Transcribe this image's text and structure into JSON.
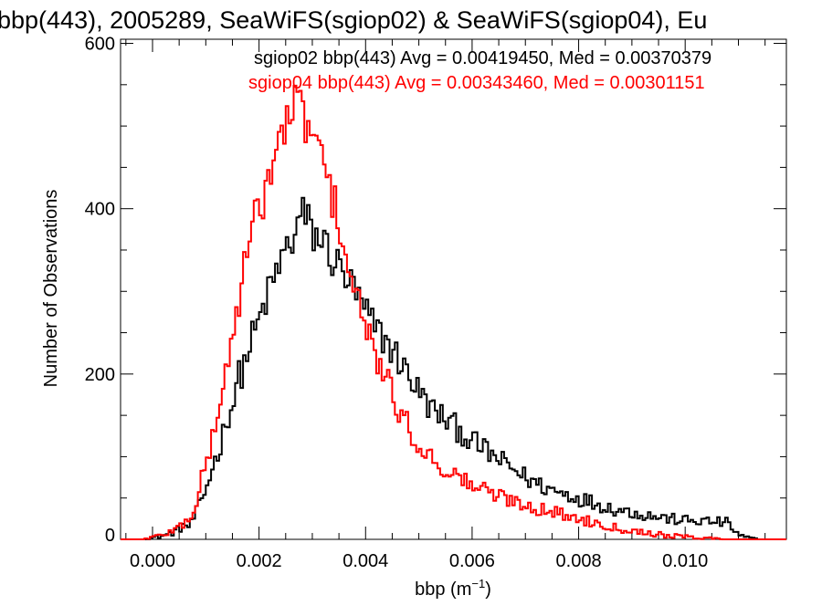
{
  "chart_data": {
    "type": "histogram",
    "title": "bbp(443), 2005289, SeaWiFS(sgiop02) & SeaWiFS(sgiop04), Eu",
    "xlabel": "bbp (m",
    "xlabel_sup": "−1",
    "xlabel_close": ")",
    "ylabel": "Number of Observations",
    "xlim": [
      -0.0006,
      0.0119
    ],
    "ylim": [
      0,
      605
    ],
    "x_ticks": [
      0.0,
      0.002,
      0.004,
      0.006,
      0.008,
      0.01
    ],
    "x_tick_labels": [
      "0.000",
      "0.002",
      "0.004",
      "0.006",
      "0.008",
      "0.010"
    ],
    "y_ticks": [
      0,
      200,
      400,
      600
    ],
    "y_tick_labels": [
      "0",
      "200",
      "400",
      "600"
    ],
    "grid": false,
    "series": [
      {
        "name": "sgiop02",
        "label": "sgiop02 bbp(443) Avg = 0.00419450, Med = 0.00370379",
        "color": "#000000",
        "curve": [
          [
            -0.0006,
            0
          ],
          [
            -0.0002,
            0
          ],
          [
            0.0001,
            3
          ],
          [
            0.0003,
            6
          ],
          [
            0.0005,
            12
          ],
          [
            0.0006,
            18
          ],
          [
            0.0007,
            15
          ],
          [
            0.0008,
            30
          ],
          [
            0.0009,
            42
          ],
          [
            0.001,
            60
          ],
          [
            0.0011,
            82
          ],
          [
            0.0012,
            100
          ],
          [
            0.0013,
            120
          ],
          [
            0.0014,
            150
          ],
          [
            0.0015,
            160
          ],
          [
            0.0016,
            195
          ],
          [
            0.0017,
            205
          ],
          [
            0.0018,
            230
          ],
          [
            0.0019,
            248
          ],
          [
            0.002,
            262
          ],
          [
            0.0021,
            285
          ],
          [
            0.0022,
            300
          ],
          [
            0.0023,
            318
          ],
          [
            0.0024,
            335
          ],
          [
            0.0025,
            350
          ],
          [
            0.0026,
            358
          ],
          [
            0.0027,
            375
          ],
          [
            0.0028,
            395
          ],
          [
            0.0029,
            385
          ],
          [
            0.003,
            370
          ],
          [
            0.0031,
            365
          ],
          [
            0.0032,
            360
          ],
          [
            0.0033,
            352
          ],
          [
            0.0034,
            335
          ],
          [
            0.0035,
            330
          ],
          [
            0.0036,
            320
          ],
          [
            0.0037,
            310
          ],
          [
            0.0038,
            300
          ],
          [
            0.0039,
            285
          ],
          [
            0.004,
            275
          ],
          [
            0.0041,
            262
          ],
          [
            0.0042,
            255
          ],
          [
            0.0043,
            245
          ],
          [
            0.0044,
            240
          ],
          [
            0.0045,
            228
          ],
          [
            0.0046,
            220
          ],
          [
            0.0047,
            210
          ],
          [
            0.0048,
            200
          ],
          [
            0.0049,
            190
          ],
          [
            0.005,
            178
          ],
          [
            0.0051,
            170
          ],
          [
            0.0052,
            160
          ],
          [
            0.0054,
            150
          ],
          [
            0.0056,
            140
          ],
          [
            0.0058,
            130
          ],
          [
            0.006,
            118
          ],
          [
            0.0062,
            110
          ],
          [
            0.0064,
            100
          ],
          [
            0.0066,
            92
          ],
          [
            0.0068,
            84
          ],
          [
            0.007,
            75
          ],
          [
            0.0072,
            68
          ],
          [
            0.0074,
            62
          ],
          [
            0.0076,
            58
          ],
          [
            0.0078,
            54
          ],
          [
            0.008,
            50
          ],
          [
            0.0082,
            46
          ],
          [
            0.0084,
            42
          ],
          [
            0.0086,
            38
          ],
          [
            0.0088,
            35
          ],
          [
            0.009,
            33
          ],
          [
            0.0092,
            30
          ],
          [
            0.0094,
            28
          ],
          [
            0.0096,
            26
          ],
          [
            0.0098,
            24
          ],
          [
            0.01,
            23
          ],
          [
            0.0102,
            22
          ],
          [
            0.0104,
            22
          ],
          [
            0.0106,
            21
          ],
          [
            0.0108,
            20
          ],
          [
            0.0109,
            12
          ],
          [
            0.011,
            6
          ],
          [
            0.0111,
            3
          ],
          [
            0.0113,
            1
          ],
          [
            0.0114,
            0
          ],
          [
            0.0119,
            0
          ]
        ]
      },
      {
        "name": "sgiop04",
        "label": "sgiop04 bbp(443) Avg = 0.00343460, Med = 0.00301151",
        "color": "#ff0000",
        "curve": [
          [
            -0.0006,
            0
          ],
          [
            -0.0002,
            0
          ],
          [
            0.0001,
            4
          ],
          [
            0.0003,
            8
          ],
          [
            0.0005,
            15
          ],
          [
            0.0006,
            20
          ],
          [
            0.0007,
            25
          ],
          [
            0.0008,
            40
          ],
          [
            0.0009,
            65
          ],
          [
            0.001,
            90
          ],
          [
            0.0011,
            115
          ],
          [
            0.0012,
            145
          ],
          [
            0.0013,
            175
          ],
          [
            0.0014,
            210
          ],
          [
            0.0015,
            245
          ],
          [
            0.0016,
            280
          ],
          [
            0.0017,
            325
          ],
          [
            0.0018,
            345
          ],
          [
            0.0019,
            380
          ],
          [
            0.002,
            400
          ],
          [
            0.0021,
            420
          ],
          [
            0.0022,
            440
          ],
          [
            0.0023,
            468
          ],
          [
            0.0024,
            480
          ],
          [
            0.0025,
            500
          ],
          [
            0.0026,
            520
          ],
          [
            0.0027,
            525
          ],
          [
            0.0028,
            515
          ],
          [
            0.0029,
            505
          ],
          [
            0.003,
            490
          ],
          [
            0.0031,
            470
          ],
          [
            0.0032,
            460
          ],
          [
            0.0033,
            425
          ],
          [
            0.0034,
            410
          ],
          [
            0.0035,
            385
          ],
          [
            0.0036,
            355
          ],
          [
            0.0037,
            320
          ],
          [
            0.0038,
            300
          ],
          [
            0.0039,
            275
          ],
          [
            0.004,
            255
          ],
          [
            0.0041,
            238
          ],
          [
            0.0042,
            222
          ],
          [
            0.0043,
            205
          ],
          [
            0.0044,
            190
          ],
          [
            0.0045,
            175
          ],
          [
            0.0046,
            160
          ],
          [
            0.0047,
            148
          ],
          [
            0.0048,
            135
          ],
          [
            0.0049,
            125
          ],
          [
            0.005,
            115
          ],
          [
            0.0051,
            108
          ],
          [
            0.0052,
            100
          ],
          [
            0.0054,
            90
          ],
          [
            0.0056,
            80
          ],
          [
            0.0058,
            73
          ],
          [
            0.006,
            66
          ],
          [
            0.0062,
            60
          ],
          [
            0.0064,
            55
          ],
          [
            0.0066,
            50
          ],
          [
            0.0068,
            47
          ],
          [
            0.007,
            42
          ],
          [
            0.0072,
            38
          ],
          [
            0.0074,
            35
          ],
          [
            0.0076,
            32
          ],
          [
            0.0078,
            28
          ],
          [
            0.008,
            25
          ],
          [
            0.0082,
            22
          ],
          [
            0.0084,
            19
          ],
          [
            0.0086,
            16
          ],
          [
            0.0088,
            13
          ],
          [
            0.009,
            11
          ],
          [
            0.0092,
            9
          ],
          [
            0.0094,
            7
          ],
          [
            0.0096,
            5
          ],
          [
            0.0098,
            4
          ],
          [
            0.01,
            3
          ],
          [
            0.0103,
            2
          ],
          [
            0.0106,
            1
          ],
          [
            0.0108,
            0
          ],
          [
            0.0119,
            0
          ]
        ]
      }
    ]
  }
}
